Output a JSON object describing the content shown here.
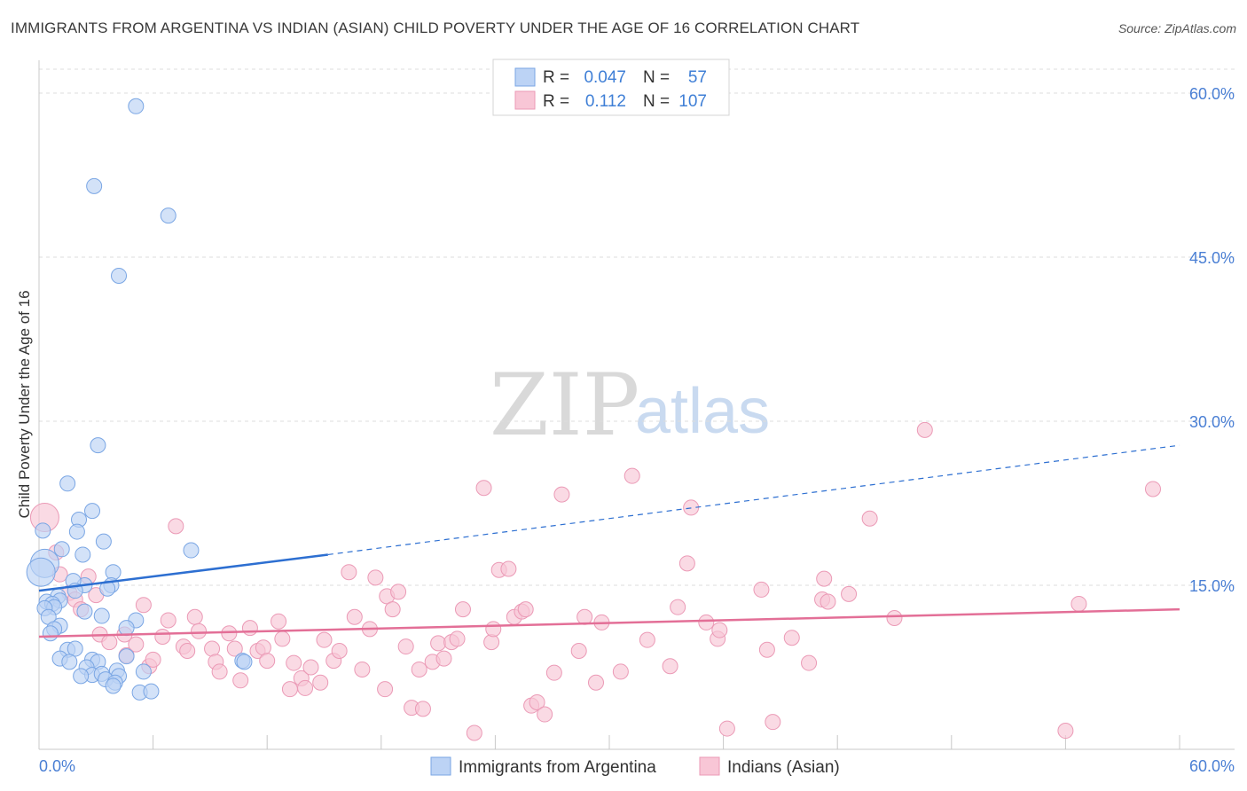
{
  "title": "IMMIGRANTS FROM ARGENTINA VS INDIAN (ASIAN) CHILD POVERTY UNDER THE AGE OF 16 CORRELATION CHART",
  "source": "Source: ZipAtlas.com",
  "watermark": {
    "zip": "ZIP",
    "atlas": "atlas"
  },
  "colors": {
    "blue_fill": "#bcd3f5",
    "blue_stroke": "#7aa6e4",
    "blue_line": "#2d6fd1",
    "pink_fill": "#f8c6d6",
    "pink_stroke": "#eb9ab6",
    "pink_line": "#e36f97",
    "tick_text": "#4a7fd4",
    "grid": "#dddddd"
  },
  "legend": {
    "rows": [
      {
        "r_label": "R =",
        "r_value": "0.047",
        "n_label": "N =",
        "n_value": "57"
      },
      {
        "r_label": "R =",
        "r_value": "0.112",
        "n_label": "N =",
        "n_value": "107"
      }
    ]
  },
  "chart_data": {
    "type": "scatter",
    "title": "IMMIGRANTS FROM ARGENTINA VS INDIAN (ASIAN) CHILD POVERTY UNDER THE AGE OF 16 CORRELATION CHART",
    "xlabel": "",
    "ylabel": "Child Poverty Under the Age of 16",
    "xlim": [
      0,
      60
    ],
    "ylim": [
      0,
      63
    ],
    "x_tick_labels": [
      "0.0%",
      "60.0%"
    ],
    "y_ticks": [
      15,
      30,
      45,
      60
    ],
    "y_tick_labels": [
      "15.0%",
      "30.0%",
      "45.0%",
      "60.0%"
    ],
    "grid": true,
    "legend_position": "bottom-center",
    "series": [
      {
        "name": "Immigrants from Argentina",
        "color": "blue",
        "trend": {
          "x0": 0,
          "y0": 14.5,
          "x1": 15.2,
          "y1": 17.8,
          "x_end": 60,
          "y_end": 27.8
        },
        "points": [
          [
            5.1,
            58.8
          ],
          [
            2.9,
            51.5
          ],
          [
            6.8,
            48.8
          ],
          [
            4.2,
            43.3
          ],
          [
            3.1,
            27.8
          ],
          [
            1.5,
            24.3
          ],
          [
            2.8,
            21.8
          ],
          [
            2.1,
            21.0
          ],
          [
            0.2,
            20.0
          ],
          [
            1.2,
            18.3
          ],
          [
            3.4,
            19.0
          ],
          [
            2.0,
            19.9
          ],
          [
            8.0,
            18.2
          ],
          [
            0.3,
            17.0
          ],
          [
            2.3,
            17.8
          ],
          [
            0.1,
            16.2
          ],
          [
            3.9,
            16.2
          ],
          [
            2.4,
            15.0
          ],
          [
            3.8,
            15.0
          ],
          [
            1.8,
            15.4
          ],
          [
            1.9,
            14.5
          ],
          [
            3.6,
            14.7
          ],
          [
            1.0,
            14.0
          ],
          [
            1.1,
            13.6
          ],
          [
            0.4,
            13.5
          ],
          [
            0.7,
            13.3
          ],
          [
            0.8,
            13.0
          ],
          [
            0.3,
            12.9
          ],
          [
            2.4,
            12.6
          ],
          [
            3.3,
            12.2
          ],
          [
            0.5,
            12.1
          ],
          [
            1.1,
            11.3
          ],
          [
            5.1,
            11.8
          ],
          [
            4.6,
            11.1
          ],
          [
            1.5,
            9.1
          ],
          [
            1.9,
            9.2
          ],
          [
            4.6,
            8.5
          ],
          [
            1.1,
            8.3
          ],
          [
            2.8,
            8.2
          ],
          [
            3.1,
            8.0
          ],
          [
            1.6,
            8.0
          ],
          [
            2.5,
            7.5
          ],
          [
            4.1,
            7.2
          ],
          [
            5.5,
            7.1
          ],
          [
            2.8,
            6.8
          ],
          [
            3.3,
            6.9
          ],
          [
            4.2,
            6.7
          ],
          [
            2.2,
            6.7
          ],
          [
            3.5,
            6.4
          ],
          [
            4.0,
            6.1
          ],
          [
            3.9,
            5.8
          ],
          [
            5.3,
            5.2
          ],
          [
            5.9,
            5.3
          ],
          [
            10.7,
            8.1
          ],
          [
            10.8,
            8.0
          ],
          [
            0.8,
            11.0
          ],
          [
            0.6,
            10.6
          ]
        ]
      },
      {
        "name": "Indians (Asian)",
        "color": "pink",
        "trend": {
          "x0": 0,
          "y0": 10.3,
          "x1": 60,
          "y1": 12.8
        },
        "points": [
          [
            0.3,
            21.2
          ],
          [
            0.9,
            18.0
          ],
          [
            1.1,
            16.0
          ],
          [
            2.6,
            15.8
          ],
          [
            1.6,
            14.3
          ],
          [
            1.9,
            13.7
          ],
          [
            2.2,
            12.8
          ],
          [
            3.0,
            14.1
          ],
          [
            3.2,
            10.5
          ],
          [
            3.7,
            9.8
          ],
          [
            4.5,
            10.5
          ],
          [
            4.6,
            8.6
          ],
          [
            5.1,
            9.6
          ],
          [
            5.5,
            13.2
          ],
          [
            5.8,
            7.6
          ],
          [
            6.0,
            8.2
          ],
          [
            6.5,
            10.3
          ],
          [
            6.8,
            11.8
          ],
          [
            7.2,
            20.4
          ],
          [
            7.6,
            9.4
          ],
          [
            7.8,
            9.0
          ],
          [
            8.2,
            12.1
          ],
          [
            8.4,
            10.8
          ],
          [
            9.1,
            9.2
          ],
          [
            9.3,
            8.0
          ],
          [
            9.5,
            7.1
          ],
          [
            10.0,
            10.6
          ],
          [
            10.3,
            9.2
          ],
          [
            10.6,
            6.3
          ],
          [
            11.1,
            11.1
          ],
          [
            11.5,
            9.0
          ],
          [
            11.8,
            9.3
          ],
          [
            12.0,
            8.1
          ],
          [
            12.6,
            11.7
          ],
          [
            12.8,
            10.1
          ],
          [
            13.2,
            5.5
          ],
          [
            13.4,
            7.9
          ],
          [
            13.8,
            6.5
          ],
          [
            14.0,
            5.6
          ],
          [
            14.3,
            7.5
          ],
          [
            14.8,
            6.1
          ],
          [
            15.0,
            10.0
          ],
          [
            15.5,
            8.1
          ],
          [
            15.8,
            9.0
          ],
          [
            16.3,
            16.2
          ],
          [
            16.6,
            12.1
          ],
          [
            17.0,
            7.3
          ],
          [
            17.4,
            11.0
          ],
          [
            17.7,
            15.7
          ],
          [
            18.2,
            5.5
          ],
          [
            18.3,
            14.0
          ],
          [
            18.6,
            12.8
          ],
          [
            18.9,
            14.4
          ],
          [
            19.3,
            9.4
          ],
          [
            19.6,
            3.8
          ],
          [
            20.0,
            7.3
          ],
          [
            20.2,
            3.7
          ],
          [
            20.7,
            8.0
          ],
          [
            21.0,
            9.7
          ],
          [
            21.3,
            8.3
          ],
          [
            21.7,
            9.8
          ],
          [
            22.0,
            10.1
          ],
          [
            22.3,
            12.8
          ],
          [
            22.9,
            1.5
          ],
          [
            23.8,
            9.8
          ],
          [
            23.9,
            11.0
          ],
          [
            24.2,
            16.4
          ],
          [
            24.7,
            16.5
          ],
          [
            25.0,
            12.1
          ],
          [
            25.4,
            12.6
          ],
          [
            25.6,
            12.8
          ],
          [
            25.9,
            4.0
          ],
          [
            26.2,
            4.3
          ],
          [
            26.6,
            3.2
          ],
          [
            27.1,
            7.0
          ],
          [
            27.5,
            23.3
          ],
          [
            28.4,
            9.0
          ],
          [
            28.7,
            12.1
          ],
          [
            29.3,
            6.1
          ],
          [
            29.6,
            11.6
          ],
          [
            30.6,
            7.1
          ],
          [
            31.2,
            25.0
          ],
          [
            32.0,
            10.0
          ],
          [
            33.2,
            7.6
          ],
          [
            33.6,
            13.0
          ],
          [
            34.1,
            17.0
          ],
          [
            34.3,
            22.1
          ],
          [
            35.1,
            11.6
          ],
          [
            35.7,
            10.1
          ],
          [
            35.8,
            10.9
          ],
          [
            36.2,
            1.9
          ],
          [
            38.0,
            14.6
          ],
          [
            38.3,
            9.1
          ],
          [
            38.6,
            2.5
          ],
          [
            39.6,
            10.2
          ],
          [
            40.5,
            7.9
          ],
          [
            41.2,
            13.7
          ],
          [
            41.3,
            15.6
          ],
          [
            41.5,
            13.5
          ],
          [
            42.6,
            14.2
          ],
          [
            43.7,
            21.1
          ],
          [
            45.0,
            12.0
          ],
          [
            46.6,
            29.2
          ],
          [
            54.0,
            1.7
          ],
          [
            54.7,
            13.3
          ],
          [
            58.6,
            23.8
          ],
          [
            23.4,
            23.9
          ]
        ]
      }
    ]
  },
  "bottom_legend": {
    "items": [
      {
        "label": "Immigrants from Argentina"
      },
      {
        "label": "Indians (Asian)"
      }
    ]
  }
}
